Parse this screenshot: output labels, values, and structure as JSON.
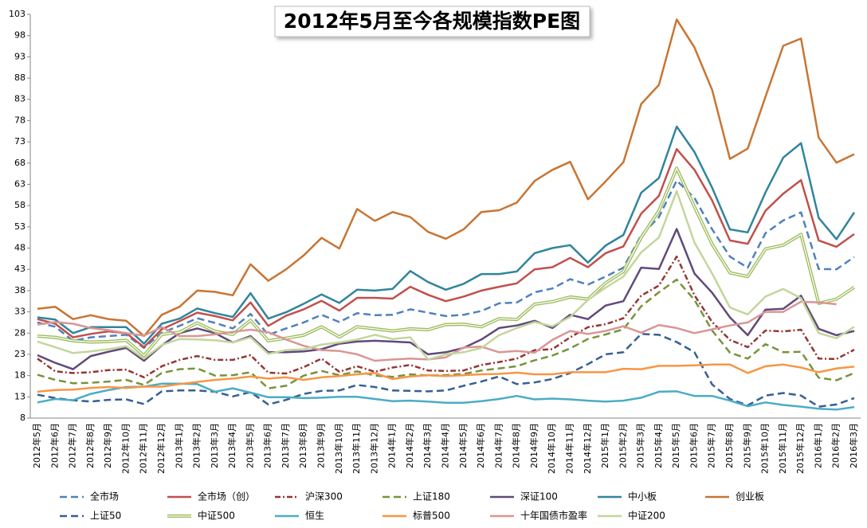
{
  "chart_data": {
    "type": "line",
    "title": "2012年5月至今各规模指数PE图",
    "categories": [
      "2012年5月",
      "2012年6月",
      "2012年7月",
      "2012年8月",
      "2012年9月",
      "2012年10月",
      "2012年11月",
      "2012年12月",
      "2013年1月",
      "2013年2月",
      "2013年3月",
      "2013年4月",
      "2013年5月",
      "2013年6月",
      "2013年7月",
      "2013年8月",
      "2013年9月",
      "2013年10月",
      "2013年11月",
      "2013年12月",
      "2014年1月",
      "2014年2月",
      "2014年3月",
      "2014年4月",
      "2014年5月",
      "2014年6月",
      "2014年7月",
      "2014年8月",
      "2014年9月",
      "2014年10月",
      "2014年11月",
      "2014年12月",
      "2015年1月",
      "2015年2月",
      "2015年3月",
      "2015年4月",
      "2015年5月",
      "2015年6月",
      "2015年7月",
      "2015年8月",
      "2015年9月",
      "2015年10月",
      "2015年11月",
      "2015年12月",
      "2016年1月",
      "2016年2月",
      "2016年3月"
    ],
    "ylim": [
      8,
      103
    ],
    "yticks": [
      8,
      13,
      18,
      23,
      28,
      33,
      38,
      43,
      48,
      53,
      58,
      63,
      68,
      73,
      78,
      83,
      88,
      93,
      98,
      103
    ],
    "grid": false,
    "series": [
      {
        "name": "全市场",
        "color": "#4f81bd",
        "style": "dash",
        "values": [
          30.5,
          29.5,
          26.2,
          27.0,
          27.3,
          27.6,
          24.5,
          28.1,
          29.7,
          31.5,
          30.4,
          29.1,
          32.5,
          27.6,
          29.1,
          30.5,
          32.3,
          30.6,
          32.7,
          32.2,
          32.3,
          33.6,
          32.8,
          32.0,
          32.3,
          33.2,
          35.0,
          35.2,
          37.6,
          38.5,
          40.7,
          39.4,
          41.3,
          43.4,
          51.0,
          55.3,
          63.9,
          59.8,
          52.4,
          46.0,
          43.4,
          51.5,
          54.5,
          56.4,
          43.1,
          43.0,
          45.9
        ]
      },
      {
        "name": "全市场（创）",
        "color": "#c0504d",
        "style": "solid",
        "values": [
          31.3,
          30.2,
          27.0,
          27.8,
          28.4,
          28.0,
          24.7,
          28.9,
          30.8,
          32.8,
          32.0,
          31.0,
          35.2,
          29.7,
          32.1,
          33.6,
          35.6,
          33.3,
          36.3,
          36.3,
          36.1,
          38.9,
          37.0,
          35.5,
          36.6,
          38.0,
          38.9,
          39.7,
          43.0,
          43.5,
          45.7,
          43.5,
          46.8,
          48.4,
          56.1,
          60.3,
          71.3,
          66.4,
          59.2,
          49.8,
          49.0,
          56.8,
          60.8,
          64.0,
          49.8,
          48.3,
          51.3
        ]
      },
      {
        "name": "沪深300",
        "color": "#943634",
        "style": "dashdot",
        "values": [
          22.0,
          19.0,
          18.6,
          18.8,
          19.3,
          19.4,
          17.6,
          20.2,
          21.7,
          22.6,
          21.7,
          21.7,
          22.8,
          18.7,
          18.5,
          20.0,
          22.0,
          18.9,
          20.2,
          18.9,
          19.9,
          20.5,
          19.2,
          19.1,
          19.2,
          20.5,
          21.2,
          22.0,
          24.0,
          24.2,
          27.0,
          29.4,
          30.1,
          31.5,
          36.8,
          39.2,
          46.0,
          36.9,
          30.6,
          26.4,
          24.7,
          28.6,
          28.4,
          28.8,
          22.0,
          21.9,
          24.1
        ]
      },
      {
        "name": "上证180",
        "color": "#77933c",
        "style": "dash",
        "values": [
          18.2,
          17.0,
          16.2,
          16.3,
          16.6,
          17.0,
          15.8,
          18.6,
          19.5,
          19.7,
          18.0,
          18.1,
          18.8,
          15.0,
          15.6,
          18.0,
          19.1,
          18.1,
          19.0,
          18.0,
          17.7,
          18.3,
          18.0,
          18.1,
          18.4,
          19.2,
          19.7,
          20.2,
          21.6,
          22.7,
          24.4,
          26.6,
          27.7,
          28.9,
          34.3,
          37.6,
          40.6,
          35.8,
          28.6,
          23.4,
          22.0,
          25.4,
          23.5,
          23.6,
          17.5,
          16.9,
          18.6
        ]
      },
      {
        "name": "深证100",
        "color": "#604a7b",
        "style": "solid",
        "values": [
          22.8,
          21.0,
          19.5,
          22.6,
          23.6,
          24.5,
          21.5,
          25.1,
          28.0,
          29.1,
          28.0,
          25.8,
          27.3,
          23.5,
          23.5,
          23.7,
          24.2,
          25.5,
          26.0,
          26.2,
          26.0,
          25.8,
          23.0,
          23.5,
          24.5,
          26.5,
          29.2,
          29.8,
          30.9,
          29.2,
          32.3,
          31.3,
          34.5,
          35.5,
          43.4,
          43.1,
          52.5,
          42.0,
          37.5,
          31.7,
          27.5,
          33.5,
          33.7,
          36.8,
          29.0,
          27.5,
          28.5
        ]
      },
      {
        "name": "中小板",
        "color": "#31859c",
        "style": "solid",
        "values": [
          31.7,
          31.2,
          28.0,
          29.4,
          29.4,
          29.4,
          25.5,
          30.2,
          31.4,
          33.8,
          32.7,
          31.8,
          37.4,
          31.4,
          32.9,
          34.9,
          37.1,
          35.1,
          38.2,
          38.0,
          38.4,
          42.6,
          40.0,
          38.2,
          39.6,
          41.9,
          41.9,
          42.5,
          46.8,
          48.0,
          48.7,
          44.6,
          48.6,
          51.1,
          61.0,
          64.5,
          76.6,
          70.6,
          62.2,
          52.4,
          51.7,
          61.1,
          69.3,
          72.7,
          55.1,
          50.1,
          56.4
        ]
      },
      {
        "name": "创业板",
        "color": "#c87533",
        "style": "solid",
        "values": [
          33.7,
          34.2,
          31.3,
          32.2,
          31.3,
          30.9,
          27.3,
          32.3,
          34.2,
          38.0,
          37.7,
          36.9,
          44.2,
          40.3,
          43.0,
          46.3,
          50.4,
          47.9,
          57.2,
          54.4,
          56.5,
          55.3,
          51.8,
          50.2,
          52.4,
          56.5,
          56.9,
          58.7,
          63.8,
          66.4,
          68.3,
          59.5,
          63.7,
          68.2,
          81.9,
          86.4,
          101.8,
          95.2,
          85.2,
          69.0,
          71.4,
          83.6,
          95.6,
          97.3,
          74.0,
          68.1,
          70.1
        ]
      },
      {
        "name": "上证50",
        "color": "#366092",
        "style": "dash",
        "values": [
          13.5,
          12.7,
          12.2,
          11.9,
          12.3,
          12.4,
          11.3,
          14.3,
          14.5,
          14.5,
          14.2,
          13.1,
          14.1,
          11.2,
          12.3,
          13.7,
          14.4,
          14.5,
          15.8,
          15.3,
          14.5,
          14.4,
          14.3,
          14.5,
          15.6,
          16.6,
          17.8,
          16.0,
          16.4,
          17.2,
          18.6,
          20.7,
          23.0,
          23.5,
          27.8,
          27.6,
          25.9,
          23.5,
          15.9,
          12.5,
          11.0,
          13.3,
          13.9,
          13.3,
          10.7,
          11.2,
          12.7
        ]
      },
      {
        "name": "中证500",
        "color": "#9bbb59",
        "style": "double",
        "values": [
          27.3,
          27.0,
          26.2,
          25.9,
          26.0,
          26.3,
          22.7,
          27.7,
          28.2,
          30.4,
          28.4,
          27.7,
          31.0,
          26.2,
          26.8,
          27.5,
          29.5,
          27.1,
          29.5,
          29.0,
          28.5,
          29.0,
          28.8,
          30.0,
          30.1,
          29.5,
          31.4,
          31.2,
          34.8,
          35.4,
          36.5,
          36.0,
          39.8,
          42.5,
          50.5,
          56.8,
          66.8,
          57.7,
          48.9,
          42.2,
          41.3,
          47.8,
          48.7,
          51.2,
          35.0,
          36.0,
          38.8
        ]
      },
      {
        "name": "恒生",
        "color": "#4bacc6",
        "style": "solid",
        "values": [
          11.7,
          12.5,
          12.2,
          13.7,
          14.6,
          15.3,
          15.4,
          16.1,
          16.1,
          16.0,
          14.2,
          15.0,
          14.0,
          12.9,
          12.9,
          12.7,
          12.8,
          13.0,
          13.0,
          12.5,
          12.0,
          12.1,
          11.9,
          11.6,
          11.6,
          12.0,
          12.5,
          13.2,
          12.4,
          12.6,
          12.4,
          12.1,
          11.9,
          12.1,
          12.8,
          14.2,
          14.3,
          13.2,
          13.2,
          12.1,
          10.8,
          11.7,
          11.1,
          10.7,
          10.2,
          10.0,
          10.6
        ]
      },
      {
        "name": "标普500",
        "color": "#f79646",
        "style": "solid",
        "values": [
          14.2,
          14.6,
          14.7,
          15.1,
          15.3,
          15.1,
          15.4,
          15.4,
          16.0,
          16.5,
          17.0,
          17.3,
          17.8,
          17.3,
          17.6,
          17.0,
          17.6,
          17.9,
          18.3,
          18.6,
          17.2,
          17.8,
          18.1,
          17.9,
          18.1,
          18.3,
          18.4,
          18.7,
          18.3,
          18.3,
          18.8,
          18.8,
          18.8,
          19.6,
          19.5,
          20.3,
          20.3,
          20.4,
          20.6,
          20.6,
          18.6,
          20.2,
          20.6,
          19.9,
          18.8,
          19.7,
          20.1
        ]
      },
      {
        "name": "十年国债市盈率",
        "color": "#d99694",
        "style": "solid",
        "values": [
          30.0,
          30.6,
          30.2,
          29.2,
          28.7,
          28.0,
          27.4,
          29.4,
          27.3,
          27.3,
          27.7,
          28.3,
          28.8,
          28.2,
          26.5,
          25.0,
          24.0,
          23.8,
          23.0,
          21.5,
          21.8,
          22.0,
          21.8,
          22.3,
          24.6,
          24.8,
          23.5,
          23.8,
          23.4,
          26.4,
          28.5,
          27.8,
          28.5,
          29.6,
          28.1,
          29.9,
          29.2,
          28.0,
          28.9,
          29.8,
          30.5,
          33.0,
          33.0,
          35.4,
          35.2,
          34.8,
          null
        ]
      },
      {
        "name": "中证200",
        "color": "#c3d69b",
        "style": "solid",
        "values": [
          26.0,
          24.7,
          23.3,
          23.7,
          24.2,
          24.9,
          22.0,
          25.2,
          26.6,
          26.5,
          26.3,
          25.8,
          27.0,
          23.1,
          24.0,
          24.2,
          25.3,
          25.8,
          26.5,
          27.6,
          26.6,
          27.0,
          21.8,
          23.0,
          23.5,
          24.5,
          27.5,
          29.2,
          30.6,
          29.6,
          31.8,
          35.8,
          38.7,
          41.3,
          47.0,
          50.5,
          61.4,
          49.3,
          42.0,
          34.0,
          32.4,
          36.6,
          38.4,
          36.2,
          28.0,
          26.8,
          29.5
        ]
      }
    ]
  }
}
